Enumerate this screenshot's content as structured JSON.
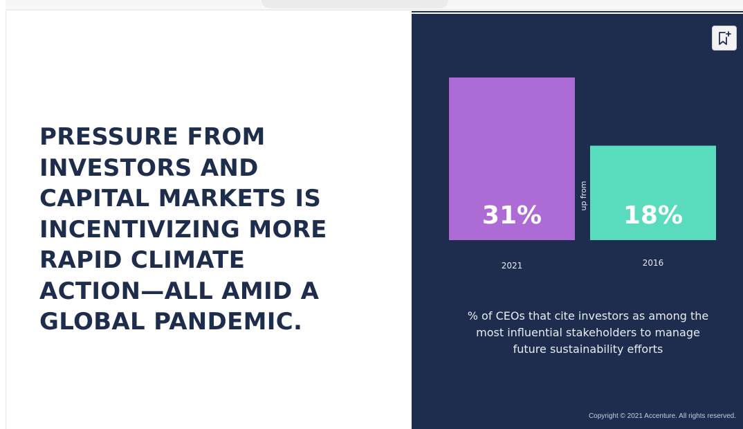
{
  "slide": {
    "headline": "PRESSURE FROM\nINVESTORS AND\nCAPITAL MARKETS IS\nINCENTIVIZING MORE\nRAPID CLIMATE\nACTION—ALL AMID A\nGLOBAL PANDEMIC.",
    "copyright": "Copyright © 2021 Accenture. All rights reserved.",
    "bookmark_icon": "bookmark-add-icon"
  },
  "chart_data": {
    "type": "bar",
    "categories": [
      "2021",
      "2016"
    ],
    "values": [
      31,
      18
    ],
    "value_labels": [
      "31%",
      "18%"
    ],
    "bar_colors": [
      "#ad6bd5",
      "#58dcbd"
    ],
    "annotation": "up from",
    "caption": "% of CEOs that cite investors as among the most influential stakeholders to manage future sustainability efforts",
    "title": "",
    "xlabel": "",
    "ylabel": "",
    "ylim": [
      0,
      31
    ]
  }
}
